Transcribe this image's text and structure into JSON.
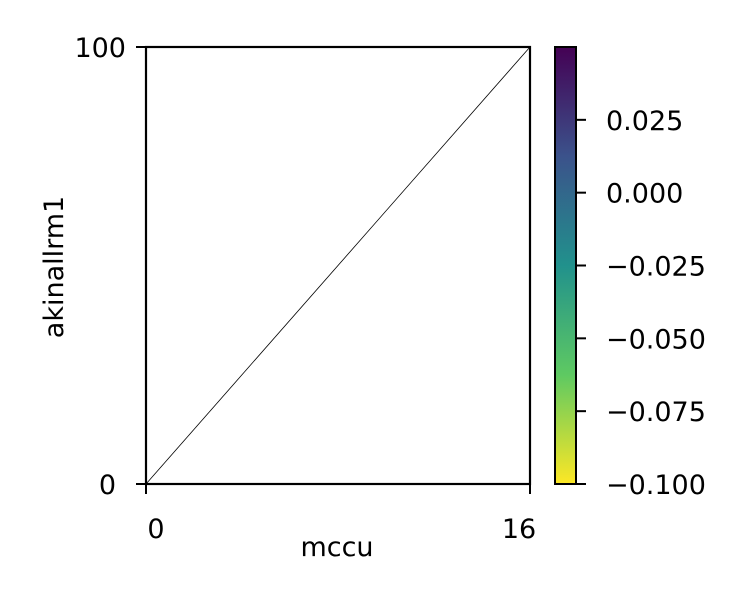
{
  "chart_data": {
    "type": "line",
    "title": "",
    "xlabel": "mccu",
    "ylabel": "akinallrm1",
    "xlim": [
      0,
      16
    ],
    "ylim": [
      0,
      100
    ],
    "x_ticks": [
      "0",
      "16"
    ],
    "y_ticks": [
      "0",
      "100"
    ],
    "grid": false,
    "series": [
      {
        "x": [
          0,
          16
        ],
        "y": [
          0,
          100
        ],
        "color": "#000000"
      }
    ],
    "colorbar": {
      "colormap": "viridis (reversed)",
      "range": [
        -0.1,
        0.05
      ],
      "ticks": [
        {
          "value": 0.025,
          "label": "0.025"
        },
        {
          "value": 0.0,
          "label": "0.000"
        },
        {
          "value": -0.025,
          "label": "−0.025"
        },
        {
          "value": -0.05,
          "label": "−0.050"
        },
        {
          "value": -0.075,
          "label": "−0.075"
        },
        {
          "value": -0.1,
          "label": "−0.100"
        }
      ],
      "colors": [
        "#fde725",
        "#5ec962",
        "#21918c",
        "#3b528b",
        "#440154"
      ]
    }
  }
}
